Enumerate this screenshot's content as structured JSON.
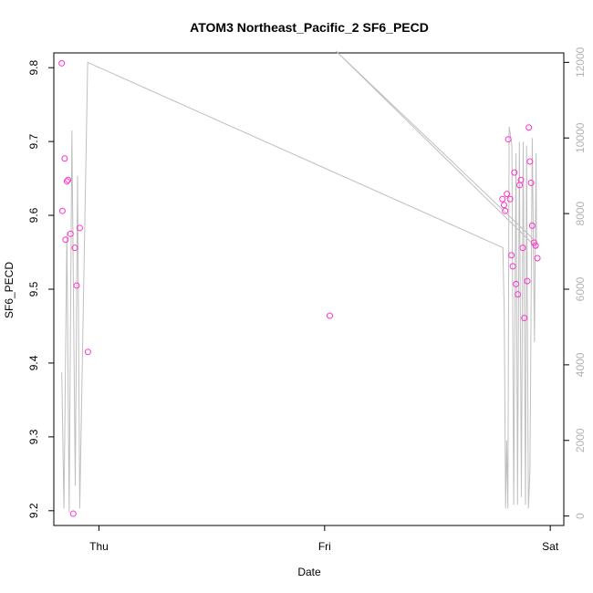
{
  "chart_data": {
    "type": "scatter",
    "title": "ATOM3 Northeast_Pacific_2 SF6_PECD",
    "xlabel": "Date",
    "ylabel": "SF6_PECD",
    "x_ticks": [
      "Thu",
      "Fri",
      "Sat"
    ],
    "x_tick_values": [
      1.0,
      2.0,
      3.0
    ],
    "xlim": [
      0.8,
      3.06
    ],
    "ylim": [
      9.18,
      9.82
    ],
    "y_ticks": [
      9.2,
      9.3,
      9.4,
      9.5,
      9.6,
      9.7,
      9.8
    ],
    "y2lim": [
      -250,
      12250
    ],
    "y2_ticks": [
      0,
      2000,
      4000,
      6000,
      8000,
      10000,
      12000
    ],
    "grid": false,
    "colors": {
      "points": "#ff33cc",
      "line": "#bfbfbf",
      "right_axis": "#b3b3b3"
    },
    "series": [
      {
        "values": [
          {
            "x": 0.835,
            "y": 9.806
          },
          {
            "x": 0.838,
            "y": 9.606
          },
          {
            "x": 0.848,
            "y": 9.677
          },
          {
            "x": 0.852,
            "y": 9.567
          },
          {
            "x": 0.858,
            "y": 9.646
          },
          {
            "x": 0.863,
            "y": 9.648
          },
          {
            "x": 0.874,
            "y": 9.575
          },
          {
            "x": 0.886,
            "y": 9.196
          },
          {
            "x": 0.893,
            "y": 9.556
          },
          {
            "x": 0.901,
            "y": 9.505
          },
          {
            "x": 0.915,
            "y": 9.583
          },
          {
            "x": 0.951,
            "y": 9.415
          },
          {
            "x": 2.023,
            "y": 9.464
          },
          {
            "x": 2.788,
            "y": 9.622
          },
          {
            "x": 2.795,
            "y": 9.614
          },
          {
            "x": 2.8,
            "y": 9.606
          },
          {
            "x": 2.808,
            "y": 9.629
          },
          {
            "x": 2.814,
            "y": 9.703
          },
          {
            "x": 2.822,
            "y": 9.622
          },
          {
            "x": 2.828,
            "y": 9.546
          },
          {
            "x": 2.834,
            "y": 9.531
          },
          {
            "x": 2.841,
            "y": 9.658
          },
          {
            "x": 2.848,
            "y": 9.507
          },
          {
            "x": 2.856,
            "y": 9.493
          },
          {
            "x": 2.864,
            "y": 9.641
          },
          {
            "x": 2.87,
            "y": 9.648
          },
          {
            "x": 2.878,
            "y": 9.556
          },
          {
            "x": 2.885,
            "y": 9.461
          },
          {
            "x": 2.898,
            "y": 9.511
          },
          {
            "x": 2.905,
            "y": 9.719
          },
          {
            "x": 2.91,
            "y": 9.673
          },
          {
            "x": 2.915,
            "y": 9.644
          },
          {
            "x": 2.92,
            "y": 9.586
          },
          {
            "x": 2.928,
            "y": 9.563
          },
          {
            "x": 2.935,
            "y": 9.559
          },
          {
            "x": 2.943,
            "y": 9.542
          }
        ]
      },
      {
        "axis": "right",
        "values": [
          {
            "x": 0.835,
            "y": 3800
          },
          {
            "x": 0.845,
            "y": 200
          },
          {
            "x": 0.858,
            "y": 7500
          },
          {
            "x": 0.868,
            "y": 100
          },
          {
            "x": 0.88,
            "y": 10200
          },
          {
            "x": 0.895,
            "y": 800
          },
          {
            "x": 0.905,
            "y": 9000
          },
          {
            "x": 0.915,
            "y": 200
          },
          {
            "x": 0.95,
            "y": 12000
          },
          {
            "x": 2.79,
            "y": 7100
          },
          {
            "x": 2.796,
            "y": 5400
          },
          {
            "x": 2.802,
            "y": 200
          },
          {
            "x": 2.807,
            "y": 2000
          },
          {
            "x": 2.812,
            "y": 200
          },
          {
            "x": 2.818,
            "y": 10300
          },
          {
            "x": 2.83,
            "y": 9800
          },
          {
            "x": 2.838,
            "y": 300
          },
          {
            "x": 2.848,
            "y": 9600
          },
          {
            "x": 2.855,
            "y": 300
          },
          {
            "x": 2.863,
            "y": 9900
          },
          {
            "x": 2.872,
            "y": 500
          },
          {
            "x": 2.88,
            "y": 9900
          },
          {
            "x": 2.89,
            "y": 300
          },
          {
            "x": 2.895,
            "y": 9800
          },
          {
            "x": 2.903,
            "y": 200
          },
          {
            "x": 2.91,
            "y": 1200
          },
          {
            "x": 2.92,
            "y": 10000
          },
          {
            "x": 2.93,
            "y": 4600
          },
          {
            "x": 2.937,
            "y": 9600
          },
          {
            "x": 2.939,
            "y": 7100
          },
          {
            "x": 2.05,
            "y": 12300
          },
          {
            "x": 2.93,
            "y": 7300
          }
        ]
      }
    ]
  }
}
